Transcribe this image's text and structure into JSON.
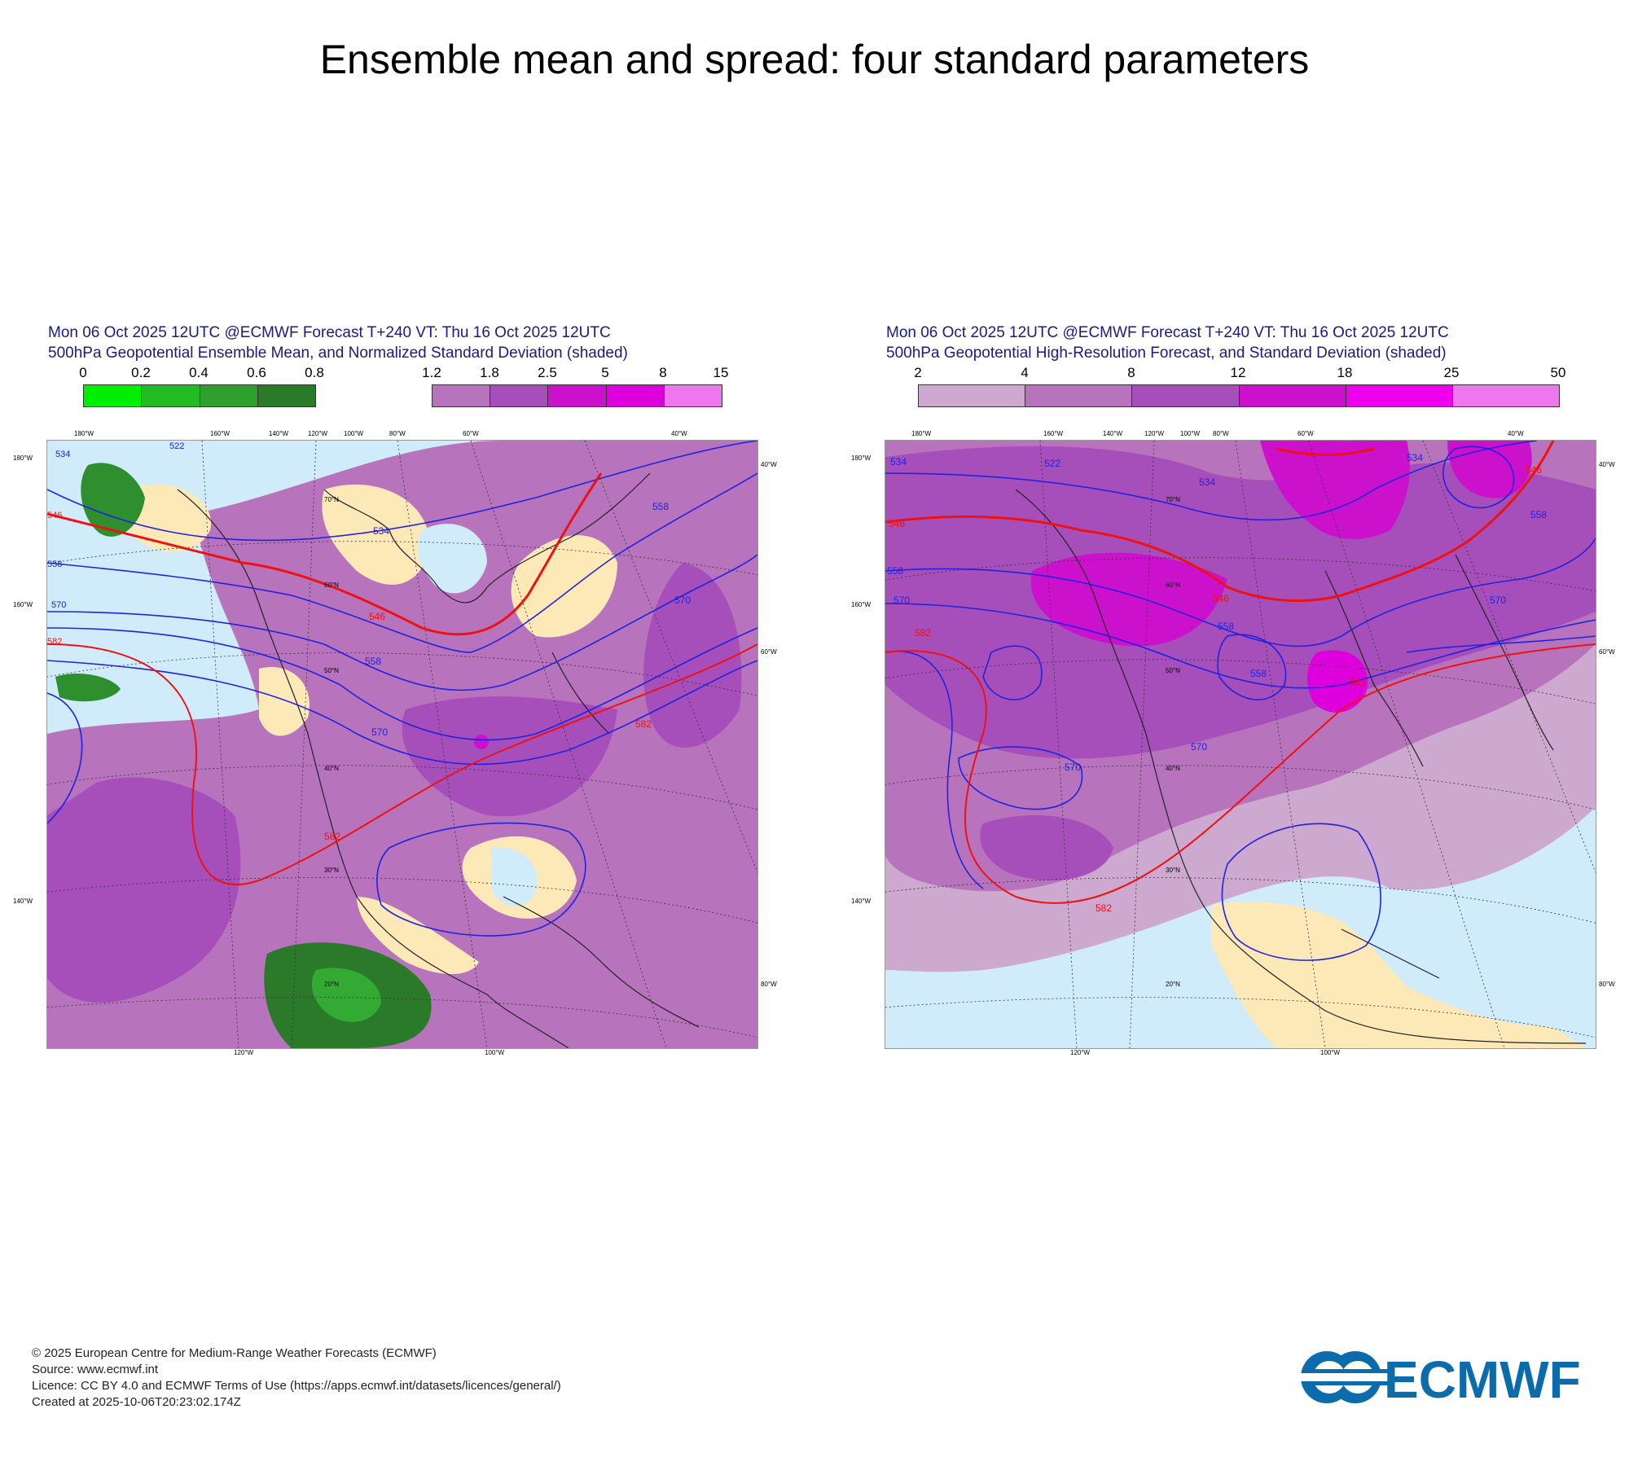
{
  "title": "Ensemble mean and spread: four standard parameters",
  "panels": [
    {
      "title_line1": "Mon 06 Oct 2025 12UTC @ECMWF Forecast T+240 VT: Thu 16 Oct 2025 12UTC",
      "title_line2": "500hPa Geopotential Ensemble Mean, and Normalized Standard Deviation (shaded)",
      "colorbar_green": {
        "ticks": [
          "0",
          "0.2",
          "0.4",
          "0.6",
          "0.8"
        ],
        "colors": [
          "#00ee00",
          "#22bb22",
          "#2f9f2f",
          "#2a7a2a"
        ]
      },
      "colorbar_purple": {
        "ticks": [
          "1.2",
          "1.8",
          "2.5",
          "5",
          "8",
          "15"
        ],
        "colors": [
          "#b873bd",
          "#a64fbb",
          "#cc11cc",
          "#dd00dd",
          "#ee77ee"
        ]
      },
      "contour_labels": [
        "534",
        "522",
        "546",
        "558",
        "570",
        "582",
        "534",
        "546",
        "558",
        "570",
        "582",
        "570",
        "558"
      ],
      "lat_labels": [
        "60°N",
        "50°N",
        "40°N",
        "30°N",
        "20°N",
        "70°N"
      ],
      "lon_labels_top": [
        "180°W",
        "160°W",
        "140°W",
        "120°W",
        "100°W",
        "80°W",
        "60°W",
        "40°W"
      ],
      "lon_labels_left": [
        "180°W",
        "160°W",
        "140°W"
      ],
      "lon_labels_right": [
        "40°W",
        "60°W",
        "80°W"
      ],
      "lon_labels_bottom": [
        "120°W",
        "100°W"
      ]
    },
    {
      "title_line1": "Mon 06 Oct 2025 12UTC @ECMWF Forecast T+240 VT: Thu 16 Oct 2025 12UTC",
      "title_line2": "500hPa Geopotential High-Resolution Forecast, and Standard Deviation (shaded)",
      "colorbar": {
        "ticks": [
          "2",
          "4",
          "8",
          "12",
          "18",
          "25",
          "50"
        ],
        "colors": [
          "#cda8cf",
          "#b873bd",
          "#a64fbb",
          "#cc11cc",
          "#ee00ee",
          "#ee77ee"
        ]
      },
      "contour_labels": [
        "534",
        "522",
        "534",
        "546",
        "558",
        "570",
        "582",
        "546",
        "558",
        "558",
        "570",
        "582",
        "570",
        "534",
        "546",
        "558",
        "570",
        "582"
      ],
      "lat_labels": [
        "60°N",
        "50°N",
        "40°N",
        "30°N",
        "20°N",
        "70°N"
      ],
      "lon_labels_top": [
        "180°W",
        "160°W",
        "140°W",
        "120°W",
        "100°W",
        "80°W",
        "60°W",
        "40°W"
      ],
      "lon_labels_left": [
        "180°W",
        "160°W",
        "140°W"
      ],
      "lon_labels_right": [
        "40°W",
        "60°W",
        "80°W"
      ],
      "lon_labels_bottom": [
        "120°W",
        "100°W"
      ]
    }
  ],
  "footer": {
    "line1": "© 2025 European Centre for Medium-Range Weather Forecasts (ECMWF)",
    "line2": "Source: www.ecmwf.int",
    "line3": "Licence: CC BY 4.0 and ECMWF Terms of Use (https://apps.ecmwf.int/datasets/licences/general/)",
    "line4": "Created at 2025-10-06T20:23:02.174Z"
  },
  "logo_text": "ECMWF",
  "colors": {
    "ocean": "#d0ecfa",
    "land": "#fde9b8",
    "contour_blue": "#2222dd",
    "contour_red": "#ee1111",
    "logo_blue": "#0c6cab"
  }
}
